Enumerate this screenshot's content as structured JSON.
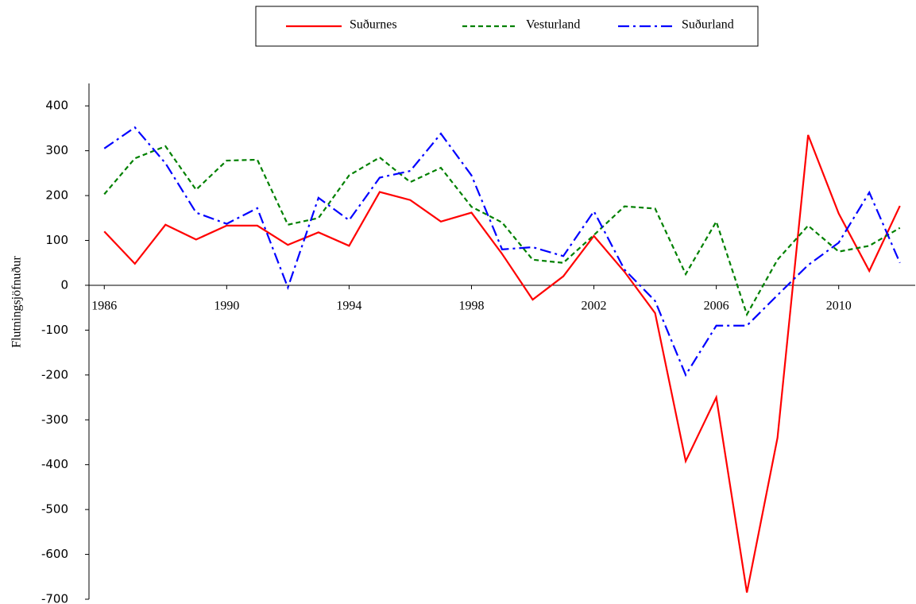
{
  "chart_data": {
    "type": "line",
    "y_label": "Flutningsjöfnuður",
    "x": [
      1986,
      1987,
      1988,
      1989,
      1990,
      1991,
      1992,
      1993,
      1994,
      1995,
      1996,
      1997,
      1998,
      1999,
      2000,
      2001,
      2002,
      2003,
      2004,
      2005,
      2006,
      2007,
      2008,
      2009,
      2010,
      2011,
      2012
    ],
    "series": [
      {
        "name": "Suðurnes",
        "color": "#ff0000",
        "dash": "solid",
        "values": [
          120,
          48,
          135,
          102,
          133,
          133,
          90,
          118,
          88,
          208,
          190,
          142,
          162,
          70,
          -32,
          20,
          110,
          30,
          -62,
          -392,
          -250,
          -685,
          -340,
          335,
          160,
          32,
          177
        ]
      },
      {
        "name": "Vesturland",
        "color": "#008000",
        "dash": "dashed",
        "values": [
          203,
          283,
          310,
          213,
          278,
          280,
          135,
          150,
          245,
          285,
          230,
          262,
          175,
          140,
          57,
          50,
          112,
          176,
          171,
          25,
          142,
          -65,
          57,
          133,
          75,
          88,
          128
        ]
      },
      {
        "name": "Suðurland",
        "color": "#0000ff",
        "dash": "dashdot",
        "values": [
          305,
          352,
          272,
          162,
          137,
          172,
          -5,
          195,
          145,
          240,
          255,
          338,
          245,
          80,
          85,
          65,
          165,
          35,
          -35,
          -200,
          -90,
          -90,
          -22,
          45,
          95,
          207,
          50
        ]
      }
    ],
    "xlim": [
      1985.5,
      2012.5
    ],
    "xticks": [
      1986,
      1990,
      1994,
      1998,
      2002,
      2006,
      2010
    ],
    "ylim": [
      -700,
      450
    ],
    "yticks": [
      400,
      300,
      200,
      100,
      0,
      -100,
      -200,
      -300,
      -400,
      -500,
      -600,
      -700
    ],
    "negative_tick_color": "#ff0000",
    "legend": "top"
  }
}
